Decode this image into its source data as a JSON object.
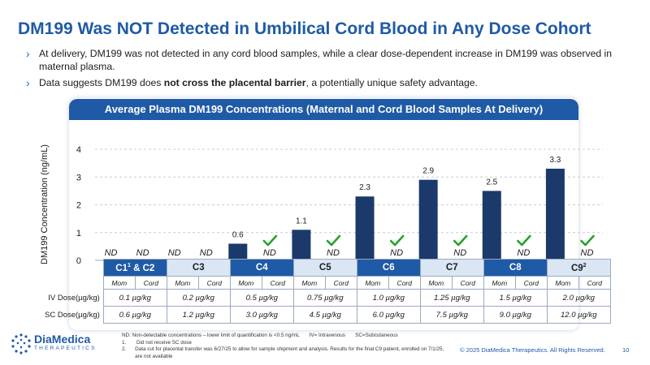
{
  "slide": {
    "title": "DM199 Was NOT Detected in Umbilical Cord Blood in Any Dose Cohort",
    "bullets": [
      {
        "text": "At delivery, DM199 was not detected in any cord blood samples, while a clear dose-dependent increase in DM199 was observed in maternal plasma."
      },
      {
        "pre": "Data suggests DM199 does ",
        "bold": "not cross the placental barrier",
        "post": ", a potentially unique safety advantage."
      }
    ],
    "panel_title": "Average Plasma DM199 Concentrations (Maternal and Cord Blood Samples At Delivery)",
    "footnote_def": "ND: Non-detectable concentrations – lower limit of quantification is <0.5 ng/mL",
    "footnote_iv": "IV= Intravenous",
    "footnote_sc": "SC=Subcutaneous",
    "note_1_num": "1.",
    "note_1": "Did not receive SC dose",
    "note_2_num": "2.",
    "note_2": "Data cut for placental transfer was 6/27/25 to allow for sample shipment and analysis. Results for the final C9 patient, enrolled on 7/1/25, are not available",
    "logo_name": "DiaMedica",
    "logo_sub": "THERAPEUTICS",
    "copyright": "© 2025 DiaMedica Therapeutics. All Rights Reserved.",
    "page_number": "10"
  },
  "colors": {
    "brand": "#1f5aa6",
    "bar": "#1b3a6b",
    "check": "#22a32a",
    "light_cell": "#dbe6f5"
  },
  "chart_data": {
    "type": "bar",
    "ylabel": "DM199 Concentration (ng/mL)",
    "ylim": [
      0,
      4
    ],
    "yticks": [
      0,
      1,
      2,
      3,
      4
    ],
    "grid": true,
    "cohorts": [
      "C1",
      "C3",
      "C4",
      "C5",
      "C6",
      "C7",
      "C8",
      "C9"
    ],
    "cohort_display": [
      {
        "name": "C1",
        "sup": "1",
        "suffix": " & C2"
      },
      {
        "name": "C3",
        "sup": "",
        "suffix": ""
      },
      {
        "name": "C4",
        "sup": "",
        "suffix": ""
      },
      {
        "name": "C5",
        "sup": "",
        "suffix": ""
      },
      {
        "name": "C6",
        "sup": "",
        "suffix": ""
      },
      {
        "name": "C7",
        "sup": "",
        "suffix": ""
      },
      {
        "name": "C8",
        "sup": "",
        "suffix": ""
      },
      {
        "name": "C9",
        "sup": "2",
        "suffix": ""
      }
    ],
    "subcategories": [
      "Mom",
      "Cord"
    ],
    "series": [
      {
        "name": "Mom",
        "values": [
          null,
          null,
          0.6,
          1.1,
          2.3,
          2.9,
          2.5,
          3.3
        ],
        "labels": [
          "ND",
          "ND",
          "0.6",
          "1.1",
          "2.3",
          "2.9",
          "2.5",
          "3.3"
        ]
      },
      {
        "name": "Cord",
        "values": [
          null,
          null,
          null,
          null,
          null,
          null,
          null,
          null
        ],
        "labels": [
          "ND",
          "ND",
          "ND",
          "ND",
          "ND",
          "ND",
          "ND",
          "ND"
        ]
      }
    ],
    "cord_check": [
      false,
      false,
      true,
      true,
      true,
      true,
      true,
      true
    ],
    "dose_rows": [
      {
        "label": "IV Dose(µg/kg)",
        "values": [
          "0.1 µg/kg",
          "0.2 µg/kg",
          "0.5 µg/kg",
          "0.75 µg/kg",
          "1.0 µg/kg",
          "1.25 µg/kg",
          "1.5 µg/kg",
          "2.0 µg/kg"
        ]
      },
      {
        "label": "SC Dose(µg/kg)",
        "values": [
          "0.6 µg/kg",
          "1.2 µg/kg",
          "3.0 µg/kg",
          "4.5 µg/kg",
          "6.0 µg/kg",
          "7.5 µg/kg",
          "9.0 µg/kg",
          "12.0 µg/kg"
        ]
      }
    ]
  }
}
